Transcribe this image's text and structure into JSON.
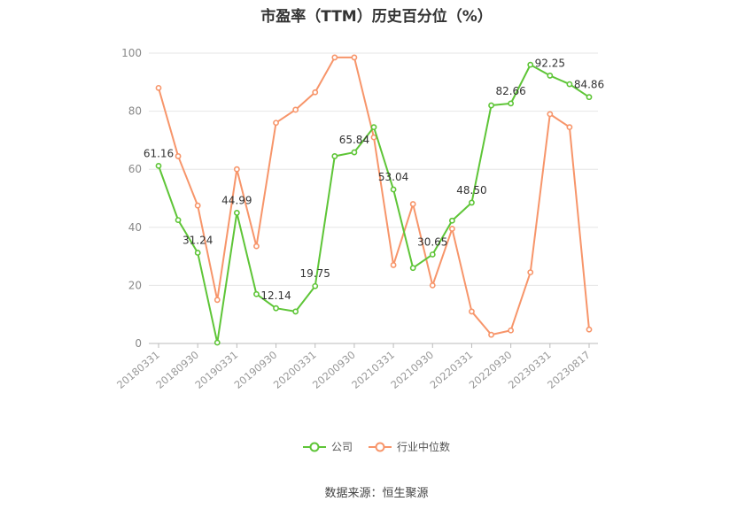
{
  "chart_data": {
    "type": "line",
    "title": "市盈率（TTM）历史百分位（%）",
    "xlabel": "",
    "ylabel": "",
    "ylim": [
      0,
      100
    ],
    "yticks": [
      0,
      20,
      40,
      60,
      80,
      100
    ],
    "grid": true,
    "legend_position": "bottom",
    "x": [
      "20180331",
      "20180630",
      "20180930",
      "20181231",
      "20190331",
      "20190630",
      "20190930",
      "20191231",
      "20200331",
      "20200630",
      "20200930",
      "20201231",
      "20210331",
      "20210630",
      "20210930",
      "20211231",
      "20220331",
      "20220630",
      "20220930",
      "20221231",
      "20230331",
      "20230630",
      "20230817"
    ],
    "xtick_labels": [
      "20180331",
      "20180930",
      "20190331",
      "20190930",
      "20200331",
      "20200930",
      "20210331",
      "20210930",
      "20220331",
      "20220930",
      "20230331",
      "20230817"
    ],
    "series": [
      {
        "name": "公司",
        "color": "#5ec537",
        "values": [
          61.16,
          42.5,
          31.24,
          0.3,
          44.99,
          17.0,
          12.14,
          11.0,
          19.75,
          64.5,
          65.84,
          74.5,
          53.04,
          26.0,
          30.65,
          42.3,
          48.5,
          82.0,
          82.66,
          96.0,
          92.25,
          89.3,
          84.86
        ],
        "labeled_points": [
          0,
          2,
          4,
          6,
          8,
          10,
          12,
          14,
          16,
          18,
          20,
          22
        ],
        "data_labels": [
          "61.16",
          "31.24",
          "44.99",
          "12.14",
          "19.75",
          "65.84",
          "53.04",
          "30.65",
          "48.50",
          "82.66",
          "92.25",
          "84.86"
        ]
      },
      {
        "name": "行业中位数",
        "color": "#f7956a",
        "values": [
          88.0,
          64.5,
          47.5,
          15.0,
          60.0,
          33.5,
          76.0,
          80.5,
          86.5,
          98.5,
          98.5,
          71.0,
          27.0,
          48.0,
          20.0,
          39.5,
          11.0,
          3.0,
          4.5,
          24.5,
          79.0,
          74.5,
          4.8
        ]
      }
    ]
  },
  "source": "数据来源：恒生聚源"
}
